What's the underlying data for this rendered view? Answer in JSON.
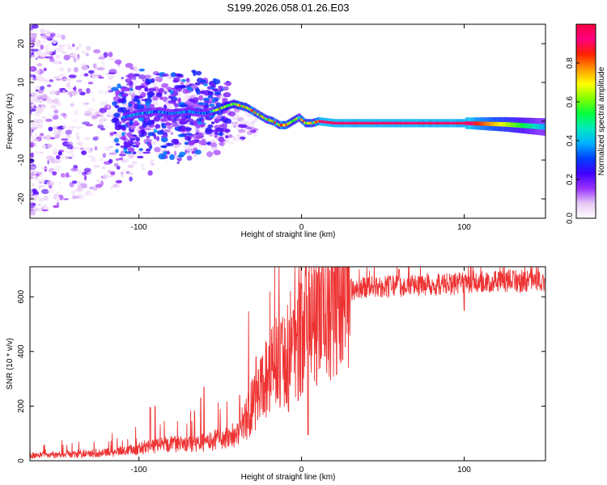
{
  "title": "S199.2026.058.01.26.E03",
  "chart_data": [
    {
      "type": "heatmap",
      "name": "spectrogram",
      "xlabel": "Height of straight line (km)",
      "ylabel": "Frequency (Hz)",
      "xlim": [
        -167,
        150
      ],
      "ylim": [
        -25,
        25
      ],
      "xticks": [
        -100,
        0,
        100
      ],
      "yticks": [
        -20,
        -10,
        0,
        10,
        20
      ],
      "ridge": [
        [
          -110,
          1
        ],
        [
          -100,
          2
        ],
        [
          -90,
          2.5
        ],
        [
          -80,
          2
        ],
        [
          -70,
          2.5
        ],
        [
          -60,
          2
        ],
        [
          -52,
          3
        ],
        [
          -46,
          4
        ],
        [
          -42,
          4.5
        ],
        [
          -38,
          4
        ],
        [
          -34,
          3.5
        ],
        [
          -30,
          2.5
        ],
        [
          -26,
          1.5
        ],
        [
          -22,
          0.5
        ],
        [
          -18,
          0
        ],
        [
          -14,
          -1
        ],
        [
          -10,
          -1
        ],
        [
          -6,
          0
        ],
        [
          -2,
          1
        ],
        [
          2,
          -0.5
        ],
        [
          6,
          -0.5
        ],
        [
          10,
          0
        ],
        [
          20,
          -0.5
        ],
        [
          60,
          -0.5
        ],
        [
          100,
          -0.5
        ],
        [
          125,
          -0.8
        ],
        [
          150,
          -1.5
        ]
      ],
      "colorbar": {
        "label": "Normalized spectral amplitude",
        "ticks": [
          0.0,
          0.2,
          0.4,
          0.6,
          0.8
        ],
        "range": [
          0,
          1
        ],
        "colormap": [
          "#ffffff",
          "#e7c8f5",
          "#9933ff",
          "#4000ff",
          "#0040ff",
          "#00b0ff",
          "#00e8c0",
          "#00ff40",
          "#80ff00",
          "#ffff00",
          "#ff9900",
          "#ff2000",
          "#ff0080",
          "#ff0040"
        ]
      }
    },
    {
      "type": "line",
      "name": "snr",
      "xlabel": "Height of straight line (km)",
      "ylabel": "SNR (10 * v/v)",
      "xlim": [
        -167,
        150
      ],
      "ylim": [
        0,
        710
      ],
      "xticks": [
        -100,
        0,
        100
      ],
      "yticks": [
        0,
        200,
        400,
        600
      ],
      "line_color": "#ee3333",
      "trend": [
        [
          -167,
          20
        ],
        [
          -130,
          25
        ],
        [
          -110,
          35
        ],
        [
          -100,
          45
        ],
        [
          -90,
          55
        ],
        [
          -80,
          60
        ],
        [
          -70,
          62
        ],
        [
          -60,
          70
        ],
        [
          -50,
          80
        ],
        [
          -40,
          100
        ],
        [
          -32,
          180
        ],
        [
          -25,
          260
        ],
        [
          -18,
          330
        ],
        [
          -10,
          390
        ],
        [
          -2,
          450
        ],
        [
          5,
          510
        ],
        [
          12,
          560
        ],
        [
          20,
          600
        ],
        [
          30,
          625
        ],
        [
          50,
          640
        ],
        [
          100,
          650
        ],
        [
          150,
          660
        ]
      ],
      "spikes": [
        [
          -90,
          200
        ],
        [
          -93,
          195
        ],
        [
          -62,
          230
        ],
        [
          -60,
          270
        ],
        [
          -38,
          240
        ],
        [
          -28,
          380
        ],
        [
          -20,
          420
        ],
        [
          -12,
          500
        ],
        [
          -8,
          610
        ],
        [
          -5,
          550
        ],
        [
          0,
          630
        ],
        [
          10,
          680
        ],
        [
          20,
          690
        ],
        [
          60,
          700
        ],
        [
          100,
          700
        ],
        [
          130,
          695
        ]
      ],
      "dips": [
        [
          4,
          95
        ],
        [
          -8,
          180
        ],
        [
          -2,
          220
        ],
        [
          100,
          550
        ]
      ]
    }
  ]
}
